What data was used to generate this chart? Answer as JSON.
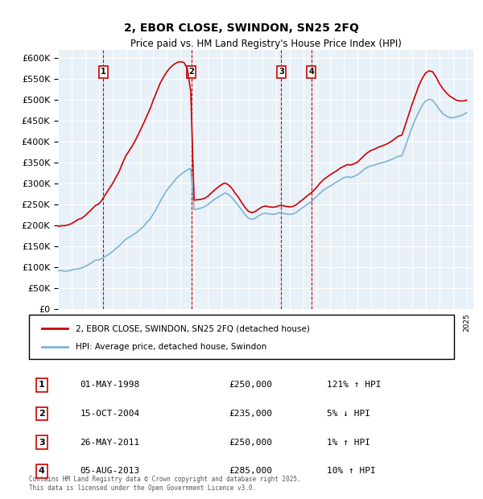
{
  "title": "2, EBOR CLOSE, SWINDON, SN25 2FQ",
  "subtitle": "Price paid vs. HM Land Registry's House Price Index (HPI)",
  "ylabel": "",
  "ylim": [
    0,
    620000
  ],
  "yticks": [
    0,
    50000,
    100000,
    150000,
    200000,
    250000,
    300000,
    350000,
    400000,
    450000,
    500000,
    550000,
    600000
  ],
  "xlim_start": 1995.0,
  "xlim_end": 2025.5,
  "bg_color": "#e8f0f8",
  "plot_bg": "#e8f0f8",
  "red_color": "#cc0000",
  "blue_color": "#7fb3d3",
  "legend_label_red": "2, EBOR CLOSE, SWINDON, SN25 2FQ (detached house)",
  "legend_label_blue": "HPI: Average price, detached house, Swindon",
  "transactions": [
    {
      "num": 1,
      "date": "01-MAY-1998",
      "price": 250000,
      "pct": "121%",
      "dir": "↑",
      "year": 1998.33
    },
    {
      "num": 2,
      "date": "15-OCT-2004",
      "price": 235000,
      "pct": "5%",
      "dir": "↓",
      "year": 2004.79
    },
    {
      "num": 3,
      "date": "26-MAY-2011",
      "price": 250000,
      "pct": "1%",
      "dir": "↑",
      "year": 2011.4
    },
    {
      "num": 4,
      "date": "05-AUG-2013",
      "price": 285000,
      "pct": "10%",
      "dir": "↑",
      "year": 2013.59
    }
  ],
  "footnote": "Contains HM Land Registry data © Crown copyright and database right 2025.\nThis data is licensed under the Open Government Licence v3.0.",
  "hpi_years": [
    1995.0,
    1995.25,
    1995.5,
    1995.75,
    1996.0,
    1996.25,
    1996.5,
    1996.75,
    1997.0,
    1997.25,
    1997.5,
    1997.75,
    1998.0,
    1998.25,
    1998.5,
    1998.75,
    1999.0,
    1999.25,
    1999.5,
    1999.75,
    2000.0,
    2000.25,
    2000.5,
    2000.75,
    2001.0,
    2001.25,
    2001.5,
    2001.75,
    2002.0,
    2002.25,
    2002.5,
    2002.75,
    2003.0,
    2003.25,
    2003.5,
    2003.75,
    2004.0,
    2004.25,
    2004.5,
    2004.75,
    2005.0,
    2005.25,
    2005.5,
    2005.75,
    2006.0,
    2006.25,
    2006.5,
    2006.75,
    2007.0,
    2007.25,
    2007.5,
    2007.75,
    2008.0,
    2008.25,
    2008.5,
    2008.75,
    2009.0,
    2009.25,
    2009.5,
    2009.75,
    2010.0,
    2010.25,
    2010.5,
    2010.75,
    2011.0,
    2011.25,
    2011.5,
    2011.75,
    2012.0,
    2012.25,
    2012.5,
    2012.75,
    2013.0,
    2013.25,
    2013.5,
    2013.75,
    2014.0,
    2014.25,
    2014.5,
    2014.75,
    2015.0,
    2015.25,
    2015.5,
    2015.75,
    2016.0,
    2016.25,
    2016.5,
    2016.75,
    2017.0,
    2017.25,
    2017.5,
    2017.75,
    2018.0,
    2018.25,
    2018.5,
    2018.75,
    2019.0,
    2019.25,
    2019.5,
    2019.75,
    2020.0,
    2020.25,
    2020.5,
    2020.75,
    2021.0,
    2021.25,
    2021.5,
    2021.75,
    2022.0,
    2022.25,
    2022.5,
    2022.75,
    2023.0,
    2023.25,
    2023.5,
    2023.75,
    2024.0,
    2024.25,
    2024.5,
    2024.75,
    2025.0
  ],
  "hpi_values": [
    92000,
    93000,
    91000,
    92000,
    94000,
    96000,
    97000,
    99000,
    103000,
    107000,
    112000,
    118000,
    118000,
    122000,
    127000,
    132000,
    138000,
    145000,
    152000,
    160000,
    168000,
    173000,
    178000,
    183000,
    190000,
    197000,
    207000,
    215000,
    228000,
    242000,
    258000,
    272000,
    285000,
    295000,
    305000,
    315000,
    322000,
    328000,
    333000,
    337000,
    238000,
    240000,
    242000,
    245000,
    250000,
    257000,
    263000,
    268000,
    273000,
    278000,
    275000,
    268000,
    258000,
    248000,
    237000,
    226000,
    218000,
    215000,
    218000,
    224000,
    228000,
    230000,
    228000,
    227000,
    228000,
    231000,
    230000,
    228000,
    227000,
    228000,
    232000,
    238000,
    244000,
    250000,
    255000,
    262000,
    270000,
    278000,
    285000,
    290000,
    295000,
    300000,
    305000,
    310000,
    315000,
    317000,
    315000,
    318000,
    322000,
    328000,
    335000,
    340000,
    343000,
    345000,
    348000,
    350000,
    352000,
    355000,
    358000,
    362000,
    366000,
    367000,
    388000,
    412000,
    435000,
    455000,
    472000,
    488000,
    498000,
    502000,
    500000,
    490000,
    478000,
    468000,
    462000,
    458000,
    458000,
    460000,
    462000,
    465000,
    470000
  ],
  "red_years": [
    1995.0,
    1995.25,
    1995.5,
    1995.75,
    1996.0,
    1996.25,
    1996.5,
    1996.75,
    1997.0,
    1997.25,
    1997.5,
    1997.75,
    1998.0,
    1998.25,
    1998.5,
    1998.75,
    1999.0,
    1999.25,
    1999.5,
    1999.75,
    2000.0,
    2000.25,
    2000.5,
    2000.75,
    2001.0,
    2001.25,
    2001.5,
    2001.75,
    2002.0,
    2002.25,
    2002.5,
    2002.75,
    2003.0,
    2003.25,
    2003.5,
    2003.75,
    2004.0,
    2004.25,
    2004.5,
    2004.75,
    2005.0,
    2005.25,
    2005.5,
    2005.75,
    2006.0,
    2006.25,
    2006.5,
    2006.75,
    2007.0,
    2007.25,
    2007.5,
    2007.75,
    2008.0,
    2008.25,
    2008.5,
    2008.75,
    2009.0,
    2009.25,
    2009.5,
    2009.75,
    2010.0,
    2010.25,
    2010.5,
    2010.75,
    2011.0,
    2011.25,
    2011.5,
    2011.75,
    2012.0,
    2012.25,
    2012.5,
    2012.75,
    2013.0,
    2013.25,
    2013.5,
    2013.75,
    2014.0,
    2014.25,
    2014.5,
    2014.75,
    2015.0,
    2015.25,
    2015.5,
    2015.75,
    2016.0,
    2016.25,
    2016.5,
    2016.75,
    2017.0,
    2017.25,
    2017.5,
    2017.75,
    2018.0,
    2018.25,
    2018.5,
    2018.75,
    2019.0,
    2019.25,
    2019.5,
    2019.75,
    2020.0,
    2020.25,
    2020.5,
    2020.75,
    2021.0,
    2021.25,
    2021.5,
    2021.75,
    2022.0,
    2022.25,
    2022.5,
    2022.75,
    2023.0,
    2023.25,
    2023.5,
    2023.75,
    2024.0,
    2024.25,
    2024.5,
    2024.75,
    2025.0
  ],
  "red_values": [
    198000,
    200000,
    200000,
    202000,
    205000,
    210000,
    215000,
    218000,
    224000,
    232000,
    240000,
    248000,
    252000,
    262000,
    275000,
    288000,
    300000,
    315000,
    330000,
    350000,
    368000,
    380000,
    393000,
    408000,
    425000,
    442000,
    460000,
    478000,
    500000,
    520000,
    540000,
    555000,
    568000,
    578000,
    585000,
    590000,
    592000,
    590000,
    575000,
    520000,
    261000,
    262000,
    263000,
    265000,
    270000,
    278000,
    285000,
    292000,
    298000,
    302000,
    298000,
    290000,
    278000,
    268000,
    255000,
    243000,
    234000,
    231000,
    234000,
    240000,
    245000,
    247000,
    245000,
    244000,
    245000,
    248000,
    248000,
    246000,
    245000,
    246000,
    250000,
    257000,
    263000,
    270000,
    276000,
    283000,
    292000,
    302000,
    310000,
    316000,
    322000,
    327000,
    332000,
    338000,
    342000,
    346000,
    345000,
    348000,
    352000,
    360000,
    368000,
    375000,
    380000,
    383000,
    387000,
    390000,
    393000,
    397000,
    402000,
    408000,
    414000,
    416000,
    440000,
    465000,
    490000,
    512000,
    535000,
    552000,
    565000,
    570000,
    568000,
    556000,
    540000,
    528000,
    518000,
    510000,
    505000,
    500000,
    498000,
    498000,
    500000
  ]
}
